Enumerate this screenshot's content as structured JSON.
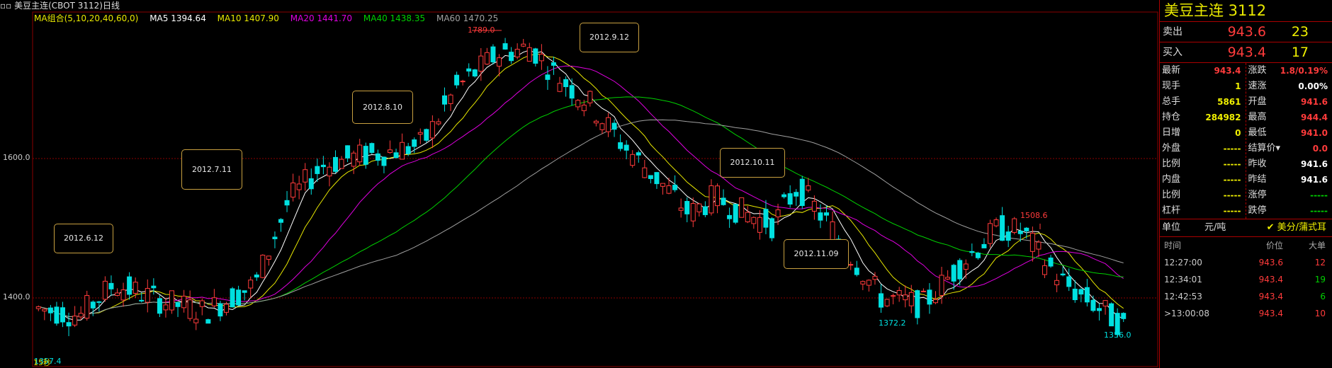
{
  "window_title": "美豆主连(CBOT 3112)日线",
  "ma_legend": [
    {
      "label": "MA组合(5,10,20,40,60,0)",
      "color": "#e8e800"
    },
    {
      "label": "MA5 1394.64",
      "color": "#ffffff"
    },
    {
      "label": "MA10 1407.90",
      "color": "#e8e800"
    },
    {
      "label": "MA20 1441.70",
      "color": "#e000e0"
    },
    {
      "label": "MA40 1438.35",
      "color": "#00d000"
    },
    {
      "label": "MA60 1470.25",
      "color": "#a0a0a0"
    }
  ],
  "y_axis": {
    "labels": [
      "1600.0",
      "1400.0"
    ]
  },
  "annotations": {
    "a1": "2012.6.12",
    "a2": "2012.7.11",
    "a3": "2012.8.10",
    "a4": "2012.9.12",
    "a5": "2012.10.11",
    "a6": "2012.11.09"
  },
  "point_labels": {
    "high": "1789.0",
    "mid_high": "1508.6",
    "low1": "1372.2",
    "low2": "1356.0",
    "bottom_left": "1357.4",
    "bottom_left_tag": "15秒"
  },
  "colors": {
    "up": "#ff3b3b",
    "down": "#00e0e0",
    "grid": "#8a0000"
  },
  "chart_data": {
    "type": "candlestick",
    "title": "美豆主连(CBOT 3112)日线",
    "ylim": [
      1340,
      1800
    ],
    "annotated_values": {
      "max": 1789.0,
      "min": 1356.0,
      "peak_label": 1508.6,
      "trough_label": 1372.2
    },
    "ma_latest": {
      "MA5": 1394.64,
      "MA10": 1407.9,
      "MA20": 1441.7,
      "MA40": 1438.35,
      "MA60": 1470.25
    }
  },
  "side": {
    "title": "美豆主连  3112",
    "sell": {
      "label": "卖出",
      "price": "943.6",
      "vol": "23"
    },
    "buy": {
      "label": "买入",
      "price": "943.4",
      "vol": "17"
    },
    "left_stats": [
      {
        "k": "最新",
        "v": "943.4",
        "c": "#ff3b3b"
      },
      {
        "k": "现手",
        "v": "1",
        "c": "#f0f000"
      },
      {
        "k": "总手",
        "v": "5861",
        "c": "#f0f000"
      },
      {
        "k": "持仓",
        "v": "284982",
        "c": "#f0f000"
      },
      {
        "k": "日增",
        "v": "0",
        "c": "#f0f000"
      },
      {
        "k": "外盘",
        "v": "-----",
        "c": "#f0f000"
      },
      {
        "k": "比例",
        "v": "-----",
        "c": "#f0f000"
      },
      {
        "k": "内盘",
        "v": "-----",
        "c": "#f0f000"
      },
      {
        "k": "比例",
        "v": "-----",
        "c": "#f0f000"
      },
      {
        "k": "杠杆",
        "v": "-----",
        "c": "#f0f000"
      }
    ],
    "right_stats": [
      {
        "k": "涨跌",
        "v": "1.8/0.19%",
        "c": "#ff3b3b"
      },
      {
        "k": "速涨",
        "v": "0.00%",
        "c": "#ffffff"
      },
      {
        "k": "开盘",
        "v": "941.6",
        "c": "#ff3b3b"
      },
      {
        "k": "最高",
        "v": "944.4",
        "c": "#ff3b3b"
      },
      {
        "k": "最低",
        "v": "941.0",
        "c": "#ff3b3b"
      },
      {
        "k": "结算价▾",
        "v": "0.0",
        "c": "#ff3b3b"
      },
      {
        "k": "昨收",
        "v": "941.6",
        "c": "#ffffff"
      },
      {
        "k": "昨结",
        "v": "941.6",
        "c": "#ffffff"
      },
      {
        "k": "涨停",
        "v": "-----",
        "c": "#00d000"
      },
      {
        "k": "跌停",
        "v": "-----",
        "c": "#00d000"
      }
    ],
    "unit": {
      "label": "单位",
      "value": "元/吨",
      "currency": "✔ 美分/蒲式耳"
    },
    "trade_head": [
      "时间",
      "价位",
      "大单"
    ],
    "trades": [
      {
        "t": "12:27:00",
        "p": "943.6",
        "v": "12",
        "vc": "#ff3b3b"
      },
      {
        "t": "12:34:01",
        "p": "943.4",
        "v": "19",
        "vc": "#00d000"
      },
      {
        "t": "12:42:53",
        "p": "943.4",
        "v": "6",
        "vc": "#00d000"
      },
      {
        "t": ">13:00:08",
        "p": "943.4",
        "v": "10",
        "vc": "#ff3b3b"
      }
    ]
  }
}
